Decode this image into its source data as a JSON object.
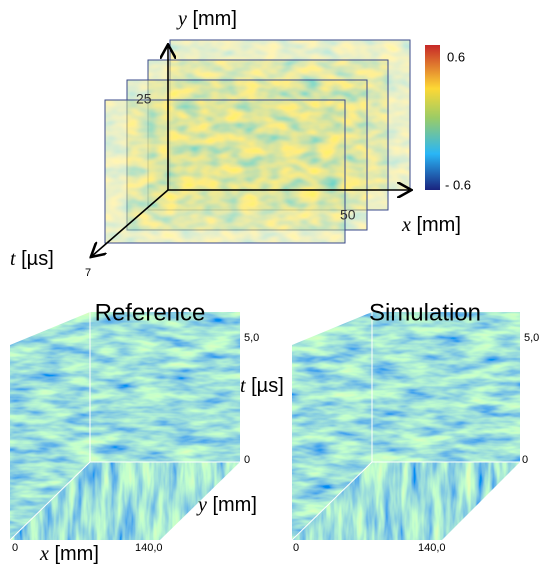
{
  "top_figure": {
    "y_axis_label": "y [mm]",
    "x_axis_label": "x [mm]",
    "t_axis_label": "t [µs]",
    "y_tick": "25",
    "x_tick": "50",
    "t_tick": "7",
    "colorbar": {
      "max_label": "0.6",
      "min_label": "- 0.6"
    }
  },
  "panels": [
    {
      "title": "Reference",
      "t_max": "5,0",
      "t_min": "0",
      "x_min": "0",
      "x_max": "140,0"
    },
    {
      "title": "Simulation",
      "t_max": "5,0",
      "t_min": "0",
      "x_min": "0",
      "x_max": "140,0"
    }
  ],
  "shared_labels": {
    "t_axis": "t [µs]",
    "y_axis": "y [mm]",
    "x_axis": "x [mm]"
  }
}
